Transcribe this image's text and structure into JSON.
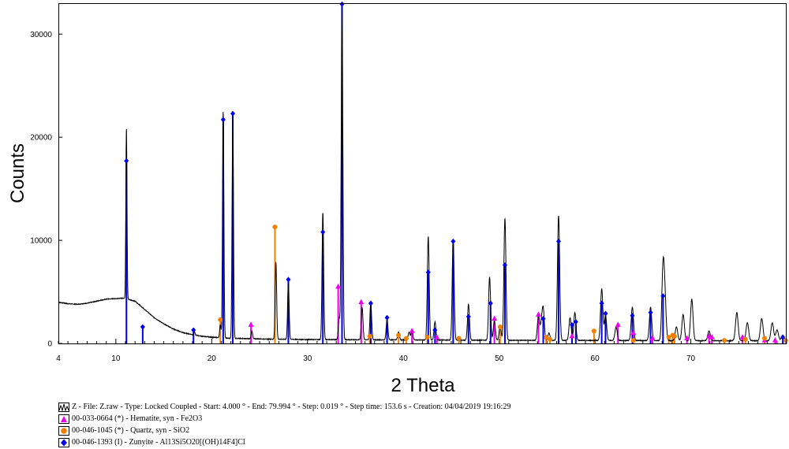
{
  "chart_data": {
    "type": "line",
    "xlabel": "2 Theta",
    "ylabel": "Counts",
    "xlim": [
      4,
      80
    ],
    "ylim": [
      0,
      33000
    ],
    "x_ticks": [
      {
        "value": 4,
        "label": "4"
      },
      {
        "value": 10,
        "label": "10"
      },
      {
        "value": 20,
        "label": "20"
      },
      {
        "value": 30,
        "label": "30"
      },
      {
        "value": 40,
        "label": "40"
      },
      {
        "value": 50,
        "label": "50"
      },
      {
        "value": 60,
        "label": "60"
      },
      {
        "value": 70,
        "label": "70"
      }
    ],
    "y_ticks": [
      {
        "value": 0,
        "label": "0"
      },
      {
        "value": 10000,
        "label": "10000"
      },
      {
        "value": 20000,
        "label": "20000"
      },
      {
        "value": 30000,
        "label": "30000"
      }
    ],
    "grid": false,
    "legend_position": "bottom-left",
    "pattern": {
      "name": "Z - File: Z.raw - Type: Locked Coupled - Start: 4.000 ° - End: 79.994 ° - Step: 0.019 ° - Step time: 153.6 s - Creation: 04/04/2019 19:16:29",
      "color": "#000000",
      "background": [
        [
          4,
          4000
        ],
        [
          5,
          3850
        ],
        [
          6,
          3800
        ],
        [
          7,
          3900
        ],
        [
          8,
          4100
        ],
        [
          9,
          4300
        ],
        [
          10,
          4350
        ],
        [
          10.8,
          4400
        ],
        [
          12,
          4100
        ],
        [
          13,
          3300
        ],
        [
          14,
          2500
        ],
        [
          15,
          1900
        ],
        [
          16,
          1400
        ],
        [
          17,
          1050
        ],
        [
          18,
          850
        ],
        [
          19,
          700
        ],
        [
          20,
          600
        ],
        [
          22,
          500
        ],
        [
          26,
          420
        ],
        [
          30,
          380
        ],
        [
          40,
          340
        ],
        [
          50,
          310
        ],
        [
          60,
          290
        ],
        [
          70,
          270
        ],
        [
          80,
          260
        ]
      ],
      "peaks": [
        [
          11.1,
          20900
        ],
        [
          12.9,
          1100
        ],
        [
          18.2,
          1100
        ],
        [
          20.9,
          1800
        ],
        [
          21.2,
          22500
        ],
        [
          22.2,
          22200
        ],
        [
          24.2,
          1200
        ],
        [
          26.7,
          7900
        ],
        [
          28.0,
          6000
        ],
        [
          31.6,
          12700
        ],
        [
          33.3,
          2400
        ],
        [
          33.6,
          33000
        ],
        [
          35.7,
          3500
        ],
        [
          36.6,
          3900
        ],
        [
          38.3,
          2300
        ],
        [
          39.5,
          1100
        ],
        [
          40.6,
          1100
        ],
        [
          40.9,
          1300
        ],
        [
          42.6,
          10400
        ],
        [
          43.3,
          2100
        ],
        [
          45.2,
          10100
        ],
        [
          46.8,
          3800
        ],
        [
          49.0,
          6400
        ],
        [
          49.5,
          2200
        ],
        [
          50.1,
          1700
        ],
        [
          50.6,
          12100
        ],
        [
          54.1,
          2700
        ],
        [
          54.4,
          1800
        ],
        [
          54.6,
          3300
        ],
        [
          55.2,
          1000
        ],
        [
          56.2,
          12400
        ],
        [
          57.4,
          2500
        ],
        [
          57.9,
          3000
        ],
        [
          60.7,
          5300
        ],
        [
          61.1,
          2700
        ],
        [
          62.2,
          1600
        ],
        [
          63.9,
          3500
        ],
        [
          65.8,
          3500
        ],
        [
          67.1,
          7100
        ],
        [
          67.3,
          4000
        ],
        [
          68.5,
          1600
        ],
        [
          69.2,
          2800
        ],
        [
          70.1,
          4300
        ],
        [
          71.9,
          1200
        ],
        [
          74.8,
          3000
        ],
        [
          75.9,
          2000
        ],
        [
          77.4,
          2400
        ],
        [
          78.5,
          2000
        ],
        [
          79.0,
          1300
        ],
        [
          79.6,
          800
        ]
      ]
    },
    "series": [
      {
        "name": "00-033-0664 (*) - Hematite, syn - Fe2O3",
        "color": "#ee00ee",
        "marker": "triangle",
        "sticks": [
          [
            24.1,
            1800
          ],
          [
            33.2,
            5500
          ],
          [
            35.6,
            4000
          ],
          [
            40.9,
            1200
          ],
          [
            43.5,
            600
          ],
          [
            49.5,
            2400
          ],
          [
            54.1,
            2800
          ],
          [
            57.6,
            700
          ],
          [
            62.4,
            1800
          ],
          [
            64.0,
            1000
          ],
          [
            66.0,
            500
          ],
          [
            69.6,
            500
          ],
          [
            71.9,
            700
          ],
          [
            72.2,
            600
          ],
          [
            75.4,
            600
          ],
          [
            77.7,
            300
          ],
          [
            78.8,
            300
          ]
        ]
      },
      {
        "name": "00-046-1045 (*) - Quartz, syn - SiO2",
        "color": "#f08000",
        "marker": "circle",
        "sticks": [
          [
            20.9,
            2300
          ],
          [
            26.6,
            11300
          ],
          [
            36.5,
            700
          ],
          [
            39.5,
            800
          ],
          [
            40.3,
            500
          ],
          [
            42.5,
            600
          ],
          [
            45.8,
            500
          ],
          [
            50.1,
            1600
          ],
          [
            54.9,
            600
          ],
          [
            55.3,
            400
          ],
          [
            59.9,
            1200
          ],
          [
            64.0,
            300
          ],
          [
            67.7,
            600
          ],
          [
            68.1,
            800
          ],
          [
            68.3,
            700
          ],
          [
            73.5,
            300
          ],
          [
            75.7,
            400
          ],
          [
            77.7,
            500
          ],
          [
            79.9,
            300
          ]
        ]
      },
      {
        "name": "00-046-1393 (I) - Zunyite - Al13Si5O20[(OH)14F4]Cl",
        "color": "#0000ee",
        "marker": "diamond",
        "sticks": [
          [
            11.1,
            17700
          ],
          [
            12.8,
            1600
          ],
          [
            18.1,
            1300
          ],
          [
            21.2,
            21700
          ],
          [
            22.2,
            22300
          ],
          [
            28.0,
            6200
          ],
          [
            31.6,
            10800
          ],
          [
            33.6,
            32900
          ],
          [
            36.6,
            3900
          ],
          [
            38.3,
            2500
          ],
          [
            42.6,
            6900
          ],
          [
            43.3,
            1300
          ],
          [
            45.2,
            9900
          ],
          [
            46.8,
            2600
          ],
          [
            49.1,
            3900
          ],
          [
            50.6,
            7600
          ],
          [
            54.6,
            2400
          ],
          [
            56.2,
            9900
          ],
          [
            57.6,
            1800
          ],
          [
            58.0,
            2100
          ],
          [
            60.7,
            3900
          ],
          [
            61.1,
            2900
          ],
          [
            63.9,
            2700
          ],
          [
            65.8,
            3000
          ],
          [
            67.1,
            4600
          ],
          [
            79.6,
            600
          ]
        ]
      }
    ]
  }
}
